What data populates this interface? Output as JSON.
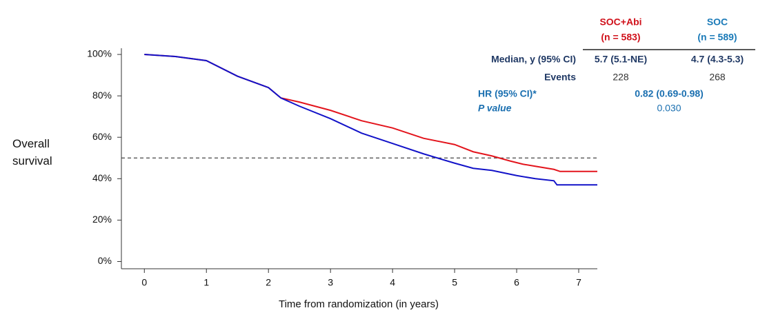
{
  "chart_data": {
    "type": "line",
    "x_label": "Time from randomization (in years)",
    "y_label": "Overall survival",
    "xlim": [
      -0.37,
      7.3
    ],
    "ylim": [
      -3.5,
      103
    ],
    "xticks": [
      0,
      1,
      2,
      3,
      4,
      5,
      6,
      7
    ],
    "yticks": [
      {
        "value": 0,
        "label": "0%"
      },
      {
        "value": 20,
        "label": "20%"
      },
      {
        "value": 40,
        "label": "40%"
      },
      {
        "value": 60,
        "label": "60%"
      },
      {
        "value": 80,
        "label": "80%"
      },
      {
        "value": 100,
        "label": "100%"
      }
    ],
    "reference_line": 50,
    "series": [
      {
        "name": "SOC+Abi",
        "color": "#e3141c",
        "x": [
          0,
          0.5,
          1,
          1.5,
          2,
          2.2,
          2.5,
          3,
          3.5,
          4,
          4.5,
          5,
          5.3,
          5.6,
          5.9,
          6.1,
          6.3,
          6.6,
          6.7,
          7.3
        ],
        "values": [
          100,
          99,
          97,
          89.5,
          84,
          79,
          77,
          73,
          68,
          64.5,
          59.5,
          56.5,
          53,
          51,
          48.5,
          47,
          46,
          44.5,
          43.5,
          43.5
        ]
      },
      {
        "name": "SOC",
        "color": "#1212c8",
        "x": [
          0,
          0.5,
          1,
          1.5,
          2,
          2.2,
          2.5,
          3,
          3.5,
          4,
          4.5,
          5,
          5.3,
          5.6,
          6,
          6.3,
          6.6,
          6.65,
          7.3
        ],
        "values": [
          100,
          99,
          97,
          89.5,
          84,
          79,
          75,
          69,
          62,
          57,
          52,
          47.5,
          45,
          44,
          41.5,
          40,
          39,
          37,
          37
        ]
      }
    ],
    "summary_table": {
      "n_labels": [
        "(n = 583)",
        "(n = 589)"
      ],
      "rows": [
        [
          "Median, y (95% CI)",
          "5.7 (5.1-NE)",
          "4.7 (4.3-5.3)"
        ],
        [
          "Events",
          "228",
          "268"
        ],
        [
          "HR (95% CI)*",
          "0.82 (0.69-0.98)"
        ],
        [
          "P value",
          "0.030"
        ]
      ]
    }
  }
}
